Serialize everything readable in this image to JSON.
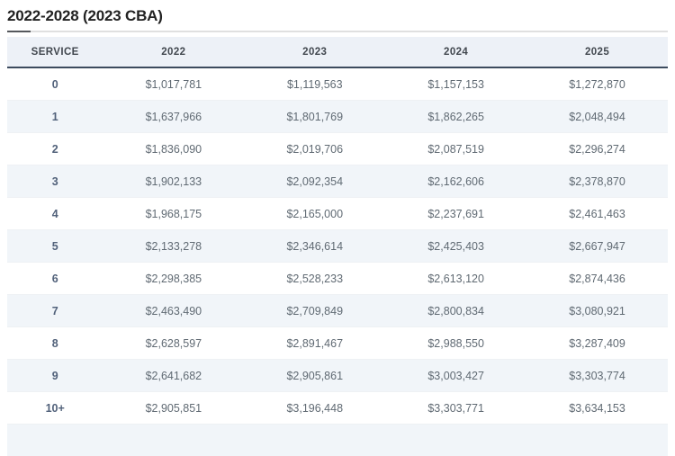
{
  "page": {
    "title": "2022-2028 (2023 CBA)"
  },
  "table": {
    "columns": [
      "SERVICE",
      "2022",
      "2023",
      "2024",
      "2025"
    ],
    "rows": [
      {
        "service": "0",
        "values": [
          "$1,017,781",
          "$1,119,563",
          "$1,157,153",
          "$1,272,870"
        ]
      },
      {
        "service": "1",
        "values": [
          "$1,637,966",
          "$1,801,769",
          "$1,862,265",
          "$2,048,494"
        ]
      },
      {
        "service": "2",
        "values": [
          "$1,836,090",
          "$2,019,706",
          "$2,087,519",
          "$2,296,274"
        ]
      },
      {
        "service": "3",
        "values": [
          "$1,902,133",
          "$2,092,354",
          "$2,162,606",
          "$2,378,870"
        ]
      },
      {
        "service": "4",
        "values": [
          "$1,968,175",
          "$2,165,000",
          "$2,237,691",
          "$2,461,463"
        ]
      },
      {
        "service": "5",
        "values": [
          "$2,133,278",
          "$2,346,614",
          "$2,425,403",
          "$2,667,947"
        ]
      },
      {
        "service": "6",
        "values": [
          "$2,298,385",
          "$2,528,233",
          "$2,613,120",
          "$2,874,436"
        ]
      },
      {
        "service": "7",
        "values": [
          "$2,463,490",
          "$2,709,849",
          "$2,800,834",
          "$3,080,921"
        ]
      },
      {
        "service": "8",
        "values": [
          "$2,628,597",
          "$2,891,467",
          "$2,988,550",
          "$3,287,409"
        ]
      },
      {
        "service": "9",
        "values": [
          "$2,641,682",
          "$2,905,861",
          "$3,003,427",
          "$3,303,774"
        ]
      },
      {
        "service": "10+",
        "values": [
          "$2,905,851",
          "$3,196,448",
          "$3,303,771",
          "$3,634,153"
        ]
      }
    ],
    "partial_next_row_visible": true
  },
  "colors": {
    "title_text": "#222222",
    "header_bg": "#edf1f7",
    "header_text": "#42484f",
    "header_border": "#3c4b5e",
    "stripe_bg": "#f1f5f9",
    "service_text": "#51617a",
    "value_text": "#606a73"
  }
}
